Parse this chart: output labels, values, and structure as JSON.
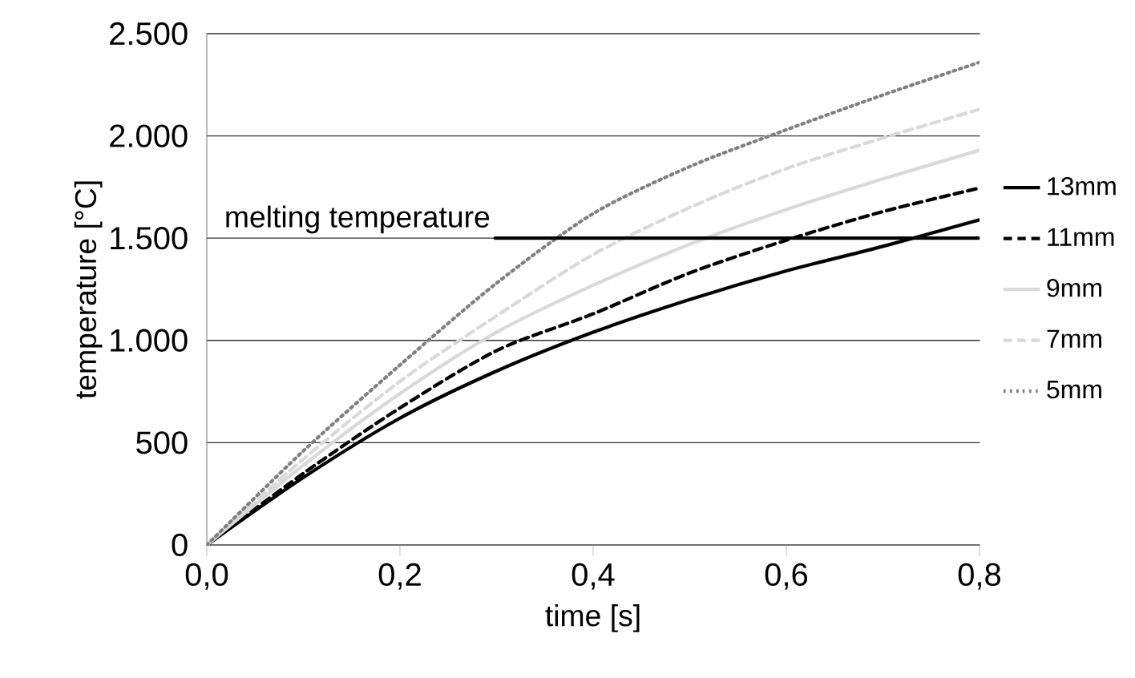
{
  "chart_data": {
    "type": "line",
    "xlabel": "time [s]",
    "ylabel": "temperature [°C]",
    "x": [
      0,
      0.1,
      0.2,
      0.3,
      0.4,
      0.5,
      0.6,
      0.7,
      0.8
    ],
    "series": [
      {
        "name": "13mm",
        "color": "#000000",
        "line_style": "solid",
        "values": [
          0,
          330,
          620,
          850,
          1040,
          1200,
          1340,
          1460,
          1590
        ]
      },
      {
        "name": "11mm",
        "color": "#000000",
        "line_style": "dashed",
        "values": [
          0,
          350,
          670,
          950,
          1130,
          1330,
          1490,
          1630,
          1745
        ]
      },
      {
        "name": "9mm",
        "color": "#d9d9d9",
        "line_style": "solid",
        "values": [
          0,
          390,
          740,
          1040,
          1270,
          1470,
          1640,
          1790,
          1930
        ]
      },
      {
        "name": "7mm",
        "color": "#d9d9d9",
        "line_style": "dashed",
        "values": [
          0,
          420,
          800,
          1120,
          1420,
          1650,
          1840,
          1990,
          2130
        ]
      },
      {
        "name": "5mm",
        "color": "#808080",
        "line_style": "dotted",
        "values": [
          0,
          460,
          880,
          1280,
          1620,
          1850,
          2030,
          2200,
          2360
        ]
      }
    ],
    "xlim": [
      0,
      0.8
    ],
    "ylim": [
      0,
      2500
    ],
    "xticks": [
      {
        "value": 0,
        "label": "0,0"
      },
      {
        "value": 0.2,
        "label": "0,2"
      },
      {
        "value": 0.4,
        "label": "0,4"
      },
      {
        "value": 0.6,
        "label": "0,6"
      },
      {
        "value": 0.8,
        "label": "0,8"
      }
    ],
    "yticks": [
      0,
      500,
      {
        "value": 1000,
        "label": "1.000"
      },
      {
        "value": 1500,
        "label": "1.500"
      },
      {
        "value": 2000,
        "label": "2.000"
      },
      {
        "value": 2500,
        "label": "2.500"
      }
    ],
    "ref_lines": [
      {
        "axis": "y",
        "value": 1500,
        "label": "melting temperature",
        "color": "#000000"
      }
    ],
    "grid": "y",
    "legend": "right",
    "marker": "none"
  }
}
